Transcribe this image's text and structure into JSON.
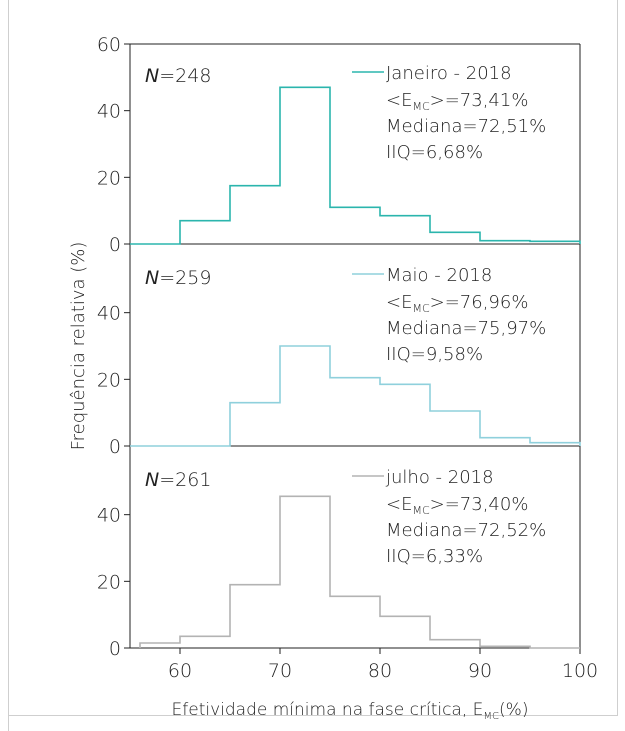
{
  "chart_data": {
    "type": "histogram",
    "xlabel": "Efetividade mínima na fase crítica, E",
    "xlabel_sub": "MC",
    "xlabel_unit": "(%)",
    "ylabel": "Frequência relativa (%)",
    "xlim": [
      55,
      100
    ],
    "xticks": [
      "60",
      "70",
      "80",
      "90",
      "100"
    ],
    "ylim": [
      0,
      60
    ],
    "panels": [
      {
        "name": "Janeiro - 2018",
        "n_label": "=248",
        "color": "#2bb5ad",
        "yticks": [
          "0",
          "20",
          "40",
          "60"
        ],
        "stats": {
          "mean_prefix": "<E",
          "mean_sub": "MC",
          "mean_suffix": ">=73,41%",
          "median": "Mediana=72,51%",
          "iqr": "IIQ=6,68%"
        },
        "bins": [
          55,
          60,
          65,
          70,
          75,
          80,
          85,
          90,
          95,
          100
        ],
        "values": [
          0,
          7,
          17.5,
          47,
          11,
          8.5,
          3.5,
          1,
          0.8
        ]
      },
      {
        "name": "Maio - 2018",
        "n_label": "=259",
        "color": "#8fd0dc",
        "yticks": [
          "0",
          "20",
          "40"
        ],
        "stats": {
          "mean_prefix": "<E",
          "mean_sub": "MC",
          "mean_suffix": ">=76,96%",
          "median": "Mediana=75,97%",
          "iqr": "IIQ=9,58%"
        },
        "bins": [
          55,
          60,
          65,
          70,
          75,
          80,
          85,
          90,
          95,
          100
        ],
        "values": [
          0,
          0,
          13,
          30,
          20.5,
          18.5,
          10.5,
          2.5,
          1
        ]
      },
      {
        "name": "julho - 2018",
        "n_label": "=261",
        "color": "#b3b3b3",
        "yticks": [
          "0",
          "20",
          "40"
        ],
        "stats": {
          "mean_prefix": "<E",
          "mean_sub": "MC",
          "mean_suffix": ">=73,40%",
          "median": "Mediana=72,52%",
          "iqr": "IIQ=6,33%"
        },
        "bins": [
          56,
          60,
          65,
          70,
          75,
          80,
          85,
          90,
          95,
          100
        ],
        "values": [
          1.5,
          3.5,
          19,
          45.5,
          15.5,
          9.5,
          2.5,
          0.5,
          0
        ]
      }
    ]
  }
}
